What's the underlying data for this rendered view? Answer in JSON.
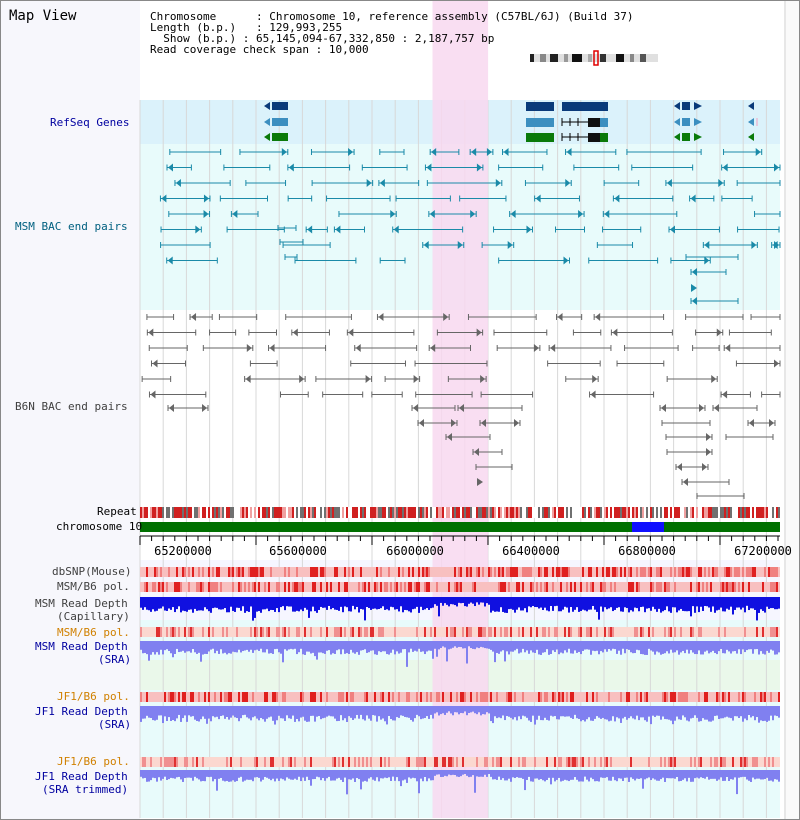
{
  "title": "Map View",
  "info": {
    "chromosome_key": "Chromosome",
    "chromosome_value": "Chromosome 10, reference assembly (C57BL/6J) (Build 37)",
    "length_key": "Length (b.p.)",
    "length_value": "129,993,255",
    "show_key": "Show (b.p.)",
    "show_value": "65,145,094-67,332,850 : 2,187,757 bp",
    "coverage_key": "Read coverage check span",
    "coverage_value": "10,000"
  },
  "tracks": {
    "refseq": "RefSeq Genes",
    "msm_bac": "MSM BAC end pairs",
    "b6n_bac": "B6N BAC end pairs",
    "repeat": "Repeat",
    "chromosome": "chromosome 10",
    "dbsnp": "dbSNP(Mouse)",
    "msm_b6_pol_1": "MSM/B6 pol.",
    "msm_depth_cap_1": "MSM Read Depth",
    "msm_depth_cap_2": "(Capillary)",
    "msm_b6_pol_2": "MSM/B6 pol.",
    "msm_depth_sra_1": "MSM Read Depth",
    "msm_depth_sra_2": "(SRA)",
    "jf1_b6_pol_1": "JF1/B6 pol.",
    "jf1_depth_sra_1": "JF1 Read Depth",
    "jf1_depth_sra_2": "(SRA)",
    "jf1_b6_pol_2": "JF1/B6 pol.",
    "jf1_depth_trim_1": "JF1 Read Depth",
    "jf1_depth_trim_2": "(SRA trimmed)"
  },
  "axis": {
    "ticks": [
      "65200000",
      "65600000",
      "66000000",
      "66400000",
      "66800000",
      "67200000"
    ],
    "range_bp": [
      65145094,
      67332850
    ]
  },
  "highlight_region_bp": [
    66145000,
    66335000
  ],
  "colors": {
    "refseq_bg": "#dbf2fb",
    "bac_bg": "#e8fbfb",
    "msm_gene": "#0a3a7a",
    "msm_gene_light": "#3c8fc0",
    "gene_green": "#0a7a0a",
    "bac_teal": "#1a8aa8",
    "bac_gray": "#666666",
    "highlight": "#f8d8f0",
    "chromosome_bar": "#007000",
    "depth_blue": "#1010e0",
    "depth_light": "#8080f0",
    "label_blue": "#0000a0",
    "label_teal": "#006080",
    "label_orange": "#d08000"
  }
}
